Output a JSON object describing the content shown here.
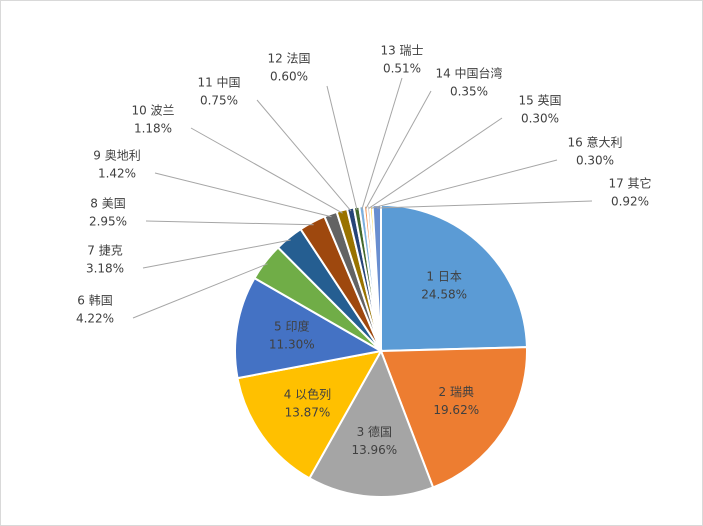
{
  "chart_data": {
    "type": "pie",
    "categories": [
      "1 日本",
      "2 瑞典",
      "3 德国",
      "4 以色列",
      "5 印度",
      "6 韩国",
      "7 捷克",
      "8 美国",
      "9 奥地利",
      "10 波兰",
      "11 中国",
      "12 法国",
      "13 瑞士",
      "14 中国台湾",
      "15 英国",
      "16 意大利",
      "17 其它"
    ],
    "values": [
      24.58,
      19.62,
      13.96,
      13.87,
      11.3,
      4.22,
      3.18,
      2.95,
      1.42,
      1.18,
      0.75,
      0.6,
      0.51,
      0.35,
      0.3,
      0.3,
      0.92
    ],
    "value_labels": [
      "24.58%",
      "19.62%",
      "13.96%",
      "13.87%",
      "11.30%",
      "4.22%",
      "3.18%",
      "2.95%",
      "1.42%",
      "1.18%",
      "0.75%",
      "0.60%",
      "0.51%",
      "0.35%",
      "0.30%",
      "0.30%",
      "0.92%"
    ],
    "colors": [
      "#5b9bd5",
      "#ed7d31",
      "#a5a5a5",
      "#ffc000",
      "#4472c4",
      "#70ad47",
      "#255e91",
      "#9e480e",
      "#636363",
      "#997300",
      "#264478",
      "#43682b",
      "#7cafdd",
      "#f1975a",
      "#b7b7b7",
      "#ffcd33",
      "#698ed0"
    ]
  }
}
